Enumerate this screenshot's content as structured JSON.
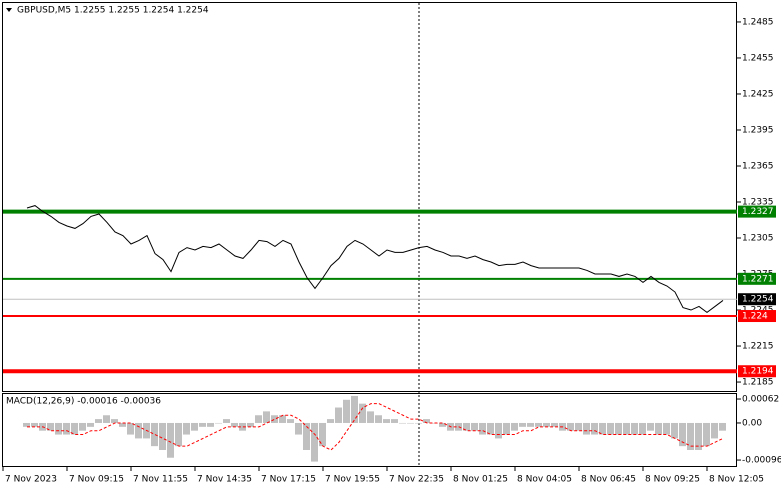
{
  "chart_data": [
    {
      "type": "line",
      "title": "GBPUSD,M5  1.2255 1.2255 1.2254 1.2254",
      "color": "#000000",
      "values": [
        1.233,
        1.2332,
        1.2327,
        1.2323,
        1.2318,
        1.2315,
        1.2313,
        1.2317,
        1.2323,
        1.2325,
        1.2318,
        1.231,
        1.2307,
        1.23,
        1.2303,
        1.2307,
        1.2292,
        1.2287,
        1.2277,
        1.2293,
        1.2297,
        1.2295,
        1.2298,
        1.2297,
        1.23,
        1.2295,
        1.229,
        1.2288,
        1.2295,
        1.2303,
        1.2302,
        1.2298,
        1.2303,
        1.23,
        1.2285,
        1.2272,
        1.2263,
        1.2272,
        1.2282,
        1.2288,
        1.2298,
        1.2303,
        1.23,
        1.2295,
        1.229,
        1.2295,
        1.2293,
        1.2293,
        1.2295,
        1.2297,
        1.2298,
        1.2295,
        1.2293,
        1.229,
        1.229,
        1.2288,
        1.229,
        1.2287,
        1.2285,
        1.2282,
        1.2283,
        1.2283,
        1.2285,
        1.2282,
        1.228,
        1.228,
        1.228,
        1.228,
        1.228,
        1.228,
        1.2278,
        1.2275,
        1.2275,
        1.2275,
        1.2273,
        1.2275,
        1.2273,
        1.2268,
        1.2273,
        1.2268,
        1.2265,
        1.226,
        1.2247,
        1.2245,
        1.2248,
        1.2243,
        1.2248,
        1.2253
      ],
      "ylim": [
        1.21767,
        1.25008
      ],
      "yticks": [
        1.2185,
        1.2215,
        1.2245,
        1.2275,
        1.2305,
        1.2335,
        1.2365,
        1.2395,
        1.2425,
        1.2455,
        1.2485
      ],
      "levels": [
        {
          "value": 1.2327,
          "color": "#008000",
          "width": 4
        },
        {
          "value": 1.2271,
          "color": "#008000",
          "width": 2
        },
        {
          "value": 1.224,
          "color": "#ff0000",
          "width": 2
        },
        {
          "value": 1.2194,
          "color": "#ff0000",
          "width": 4
        }
      ],
      "current_price": 1.2254
    },
    {
      "type": "macd",
      "title": "MACD(12,26,9) -0.00016 -0.00036",
      "series": [
        {
          "color": "#c0c0c0",
          "values": [
            -0.0001,
            -0.0001,
            -0.0002,
            -0.0002,
            -0.0003,
            -0.0003,
            -0.0003,
            -0.0002,
            -0.0001,
            0.0001,
            0.0002,
            0.0001,
            -0.0001,
            -0.0003,
            -0.0004,
            -0.0004,
            -0.0006,
            -0.0007,
            -0.0009,
            -0.0006,
            -0.0003,
            -0.0002,
            -0.0001,
            -0.0001,
            0,
            0.0001,
            -0.0001,
            -0.0002,
            -0.0001,
            0.0002,
            0.0003,
            0.0002,
            0.0002,
            0.0001,
            -0.0003,
            -0.0007,
            -0.001,
            -0.0006,
            0.0001,
            0.0004,
            0.0006,
            0.0007,
            0.0005,
            0.0003,
            0.0002,
            0.0001,
            0.0001,
            0,
            0,
            0,
            0.0001,
            0,
            -0.0001,
            -0.0002,
            -0.0002,
            -0.0002,
            -0.0002,
            -0.0003,
            -0.0003,
            -0.0004,
            -0.0003,
            -0.0002,
            -0.0001,
            -0.0001,
            -0.0001,
            -0.0001,
            -0.0001,
            -0.0002,
            -0.0002,
            -0.0002,
            -0.0003,
            -0.0003,
            -0.0003,
            -0.0003,
            -0.0003,
            -0.0003,
            -0.0003,
            -0.0003,
            -0.0002,
            -0.0003,
            -0.0003,
            -0.0004,
            -0.0006,
            -0.0007,
            -0.0007,
            -0.0006,
            -0.0004,
            -0.0002
          ]
        },
        {
          "color": "#ff0000",
          "values": [
            -0.0001,
            -0.0001,
            -0.0001,
            -0.0002,
            -0.0002,
            -0.0002,
            -0.0003,
            -0.0003,
            -0.0002,
            -0.0002,
            -0.0001,
            0,
            0,
            0,
            -0.0001,
            -0.0002,
            -0.0003,
            -0.0004,
            -0.0005,
            -0.0006,
            -0.0006,
            -0.0005,
            -0.0004,
            -0.0003,
            -0.0002,
            -0.0001,
            -0.0001,
            -0.0001,
            -0.0001,
            -0.0001,
            0,
            0.0001,
            0.0002,
            0.0002,
            0.0001,
            -0.0001,
            -0.0003,
            -0.0006,
            -0.0007,
            -0.0005,
            -0.0002,
            0.0001,
            0.0004,
            0.0005,
            0.0005,
            0.0004,
            0.0003,
            0.0002,
            0.0001,
            0.0001,
            0,
            0,
            0,
            -0.0001,
            -0.0001,
            -0.0002,
            -0.0002,
            -0.0002,
            -0.0003,
            -0.0003,
            -0.0003,
            -0.0003,
            -0.0002,
            -0.0002,
            -0.0001,
            -0.0001,
            -0.0001,
            -0.0001,
            -0.0002,
            -0.0002,
            -0.0002,
            -0.0002,
            -0.0003,
            -0.0003,
            -0.0003,
            -0.0003,
            -0.0003,
            -0.0003,
            -0.0003,
            -0.0003,
            -0.0003,
            -0.0004,
            -0.0005,
            -0.0006,
            -0.0006,
            -0.0006,
            -0.0005,
            -0.0004
          ]
        }
      ],
      "ylim": [
        -0.00114,
        0.00075
      ],
      "yticks": [
        -0.00096,
        {
          "value": 0,
          "label": "0.00"
        },
        0.00062
      ]
    }
  ],
  "time_labels": [
    "7 Nov 2023",
    "7 Nov 09:15",
    "7 Nov 11:55",
    "7 Nov 14:35",
    "7 Nov 17:15",
    "7 Nov 19:55",
    "7 Nov 22:35",
    "8 Nov 01:25",
    "8 Nov 04:05",
    "8 Nov 06:45",
    "8 Nov 09:25",
    "8 Nov 12:05"
  ]
}
